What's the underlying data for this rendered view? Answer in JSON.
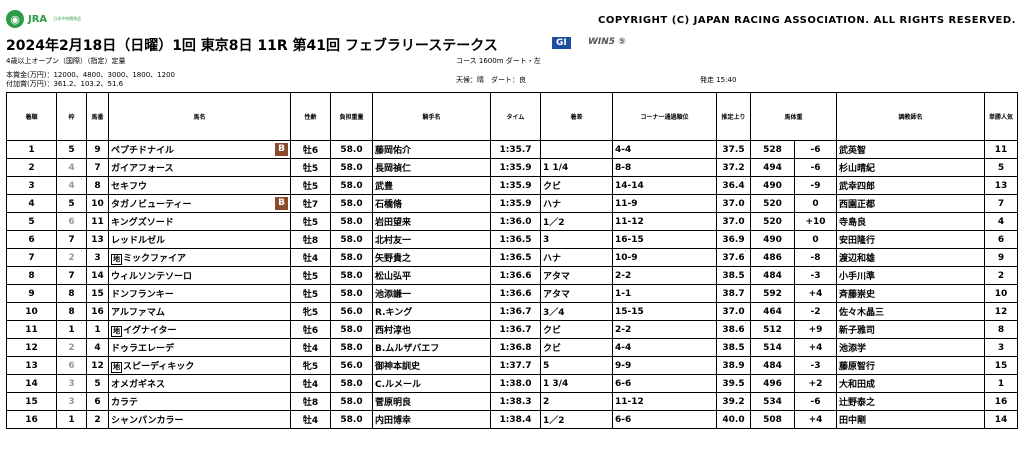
{
  "header": {
    "logo": "JRA",
    "logo_sub": "日本中央競馬会",
    "copyright": "COPYRIGHT (C) JAPAN RACING ASSOCIATION. ALL RIGHTS RESERVED.",
    "race_title": "2024年2月18日（日曜）1回 東京8日 11R 第41回 フェブラリーステークス",
    "grade": "GI",
    "win5": "WIN5 ⑤",
    "conditions": "4歳以上オープン（国際）（指定）定量",
    "course": "コース 1600m ダート・左",
    "prize_money": "本賞金(万円)：12000、4800、3000、1800、1200",
    "added_money": "付加賞(万円)：361.2、103.2、51.6",
    "weather_track": "天候：晴　ダート：良",
    "post_time": "発走 15:40"
  },
  "columns": [
    "着順",
    "枠",
    "馬番",
    "馬名",
    "性齢",
    "負担重量",
    "騎手名",
    "タイム",
    "着差",
    "コーナー通過順位",
    "推定上り",
    "馬体重",
    "",
    "調教師名",
    "単勝人気"
  ],
  "rows": [
    {
      "pos": "1",
      "waku": "5",
      "num": "9",
      "mark": "",
      "horse": "ペプチドナイル",
      "blinker": "B",
      "sex": "牡6",
      "wt": "58.0",
      "jockey": "藤岡佑介",
      "time": "1:35.7",
      "margin": "",
      "corner": "4-4",
      "last": "37.5",
      "bw": "528",
      "diff": "-6",
      "trainer": "武英智",
      "pop": "11"
    },
    {
      "pos": "2",
      "waku": "4",
      "num": "7",
      "mark": "",
      "horse": "ガイアフォース",
      "blinker": "",
      "sex": "牡5",
      "wt": "58.0",
      "jockey": "長岡禎仁",
      "time": "1:35.9",
      "margin": "1 1/4",
      "corner": "8-8",
      "last": "37.2",
      "bw": "494",
      "diff": "-6",
      "trainer": "杉山晴紀",
      "pop": "5"
    },
    {
      "pos": "3",
      "waku": "4",
      "num": "8",
      "mark": "",
      "horse": "セキフウ",
      "blinker": "",
      "sex": "牡5",
      "wt": "58.0",
      "jockey": "武豊",
      "time": "1:35.9",
      "margin": "クビ",
      "corner": "14-14",
      "last": "36.4",
      "bw": "490",
      "diff": "-9",
      "trainer": "武幸四郎",
      "pop": "13"
    },
    {
      "pos": "4",
      "waku": "5",
      "num": "10",
      "mark": "",
      "horse": "タガノビューティー",
      "blinker": "B",
      "sex": "牡7",
      "wt": "58.0",
      "jockey": "石橋脩",
      "time": "1:35.9",
      "margin": "ハナ",
      "corner": "11-9",
      "last": "37.0",
      "bw": "520",
      "diff": "0",
      "trainer": "西園正都",
      "pop": "7"
    },
    {
      "pos": "5",
      "waku": "6",
      "num": "11",
      "mark": "",
      "horse": "キングズソード",
      "blinker": "",
      "sex": "牡5",
      "wt": "58.0",
      "jockey": "岩田望来",
      "time": "1:36.0",
      "margin": "1／2",
      "corner": "11-12",
      "last": "37.0",
      "bw": "520",
      "diff": "+10",
      "trainer": "寺島良",
      "pop": "4"
    },
    {
      "pos": "6",
      "waku": "7",
      "num": "13",
      "mark": "",
      "horse": "レッドルゼル",
      "blinker": "",
      "sex": "牡8",
      "wt": "58.0",
      "jockey": "北村友一",
      "time": "1:36.5",
      "margin": "3",
      "corner": "16-15",
      "last": "36.9",
      "bw": "490",
      "diff": "0",
      "trainer": "安田隆行",
      "pop": "6"
    },
    {
      "pos": "7",
      "waku": "2",
      "num": "3",
      "mark": "地",
      "horse": "ミックファイア",
      "blinker": "",
      "sex": "牡4",
      "wt": "58.0",
      "jockey": "矢野貴之",
      "time": "1:36.5",
      "margin": "ハナ",
      "corner": "10-9",
      "last": "37.6",
      "bw": "486",
      "diff": "-8",
      "trainer": "渡辺和雄",
      "pop": "9"
    },
    {
      "pos": "8",
      "waku": "7",
      "num": "14",
      "mark": "",
      "horse": "ウィルソンテソーロ",
      "blinker": "",
      "sex": "牡5",
      "wt": "58.0",
      "jockey": "松山弘平",
      "time": "1:36.6",
      "margin": "アタマ",
      "corner": "2-2",
      "last": "38.5",
      "bw": "484",
      "diff": "-3",
      "trainer": "小手川準",
      "pop": "2"
    },
    {
      "pos": "9",
      "waku": "8",
      "num": "15",
      "mark": "",
      "horse": "ドンフランキー",
      "blinker": "",
      "sex": "牡5",
      "wt": "58.0",
      "jockey": "池添謙一",
      "time": "1:36.6",
      "margin": "アタマ",
      "corner": "1-1",
      "last": "38.7",
      "bw": "592",
      "diff": "+4",
      "trainer": "斉藤崇史",
      "pop": "10"
    },
    {
      "pos": "10",
      "waku": "8",
      "num": "16",
      "mark": "",
      "horse": "アルファマム",
      "blinker": "",
      "sex": "牝5",
      "wt": "56.0",
      "jockey": "R.キング",
      "time": "1:36.7",
      "margin": "3／4",
      "corner": "15-15",
      "last": "37.0",
      "bw": "464",
      "diff": "-2",
      "trainer": "佐々木晶三",
      "pop": "12"
    },
    {
      "pos": "11",
      "waku": "1",
      "num": "1",
      "mark": "地",
      "horse": "イグナイター",
      "blinker": "",
      "sex": "牡6",
      "wt": "58.0",
      "jockey": "西村淳也",
      "time": "1:36.7",
      "margin": "クビ",
      "corner": "2-2",
      "last": "38.6",
      "bw": "512",
      "diff": "+9",
      "trainer": "新子雅司",
      "pop": "8"
    },
    {
      "pos": "12",
      "waku": "2",
      "num": "4",
      "mark": "",
      "horse": "ドゥラエレーデ",
      "blinker": "",
      "sex": "牡4",
      "wt": "58.0",
      "jockey": "B.ムルザバエフ",
      "time": "1:36.8",
      "margin": "クビ",
      "corner": "4-4",
      "last": "38.5",
      "bw": "514",
      "diff": "+4",
      "trainer": "池添学",
      "pop": "3"
    },
    {
      "pos": "13",
      "waku": "6",
      "num": "12",
      "mark": "地",
      "horse": "スピーディキック",
      "blinker": "",
      "sex": "牝5",
      "wt": "56.0",
      "jockey": "御神本訓史",
      "time": "1:37.7",
      "margin": "5",
      "corner": "9-9",
      "last": "38.9",
      "bw": "484",
      "diff": "-3",
      "trainer": "藤原智行",
      "pop": "15"
    },
    {
      "pos": "14",
      "waku": "3",
      "num": "5",
      "mark": "",
      "horse": "オメガギネス",
      "blinker": "",
      "sex": "牡4",
      "wt": "58.0",
      "jockey": "C.ルメール",
      "time": "1:38.0",
      "margin": "1 3/4",
      "corner": "6-6",
      "last": "39.5",
      "bw": "496",
      "diff": "+2",
      "trainer": "大和田成",
      "pop": "1"
    },
    {
      "pos": "15",
      "waku": "3",
      "num": "6",
      "mark": "",
      "horse": "カラテ",
      "blinker": "",
      "sex": "牡8",
      "wt": "58.0",
      "jockey": "菅原明良",
      "time": "1:38.3",
      "margin": "2",
      "corner": "11-12",
      "last": "39.2",
      "bw": "534",
      "diff": "-6",
      "trainer": "辻野泰之",
      "pop": "16"
    },
    {
      "pos": "16",
      "waku": "1",
      "num": "2",
      "mark": "",
      "horse": "シャンパンカラー",
      "blinker": "",
      "sex": "牡4",
      "wt": "58.0",
      "jockey": "内田博幸",
      "time": "1:38.4",
      "margin": "1／2",
      "corner": "6-6",
      "last": "40.0",
      "bw": "508",
      "diff": "+4",
      "trainer": "田中剛",
      "pop": "14"
    }
  ]
}
